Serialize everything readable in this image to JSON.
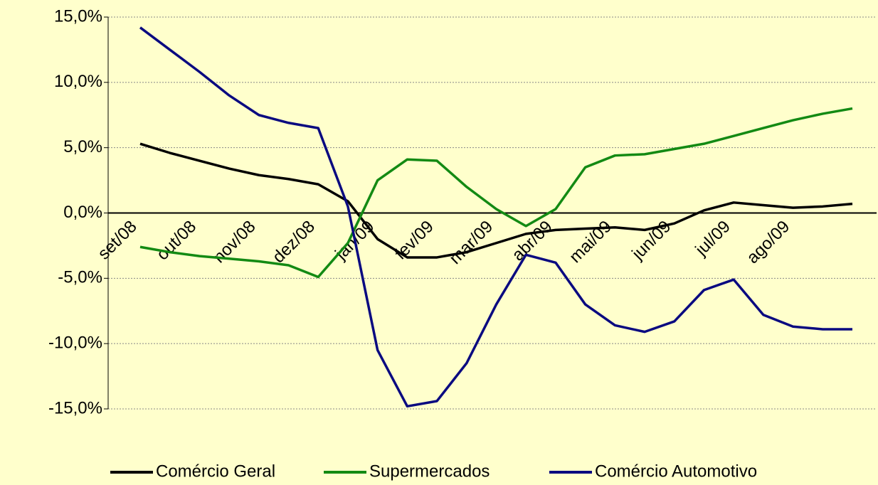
{
  "chart_data": {
    "type": "line",
    "categories": [
      "set/08",
      null,
      "out/08",
      null,
      "nov/08",
      null,
      "dez/08",
      null,
      "jan/09",
      null,
      "fev/09",
      null,
      "mar/09",
      null,
      "abr/09",
      null,
      "mai/09",
      null,
      "jun/09",
      null,
      "jul/09",
      null,
      "ago/09",
      null,
      null
    ],
    "series": [
      {
        "name": "Comércio Geral",
        "color": "#000000",
        "values": [
          5.3,
          4.6,
          4.0,
          3.4,
          2.9,
          2.6,
          2.2,
          0.9,
          -2.0,
          -3.4,
          -3.4,
          -3.0,
          -2.3,
          -1.6,
          -1.3,
          -1.2,
          -1.1,
          -1.3,
          -0.8,
          0.2,
          0.8,
          0.6,
          0.4,
          0.5,
          0.7
        ]
      },
      {
        "name": "Supermercados",
        "color": "#138a13",
        "values": [
          -2.6,
          -3.0,
          -3.3,
          -3.5,
          -3.7,
          -4.0,
          -4.9,
          -2.3,
          2.5,
          4.1,
          4.0,
          2.0,
          0.3,
          -1.0,
          0.3,
          3.5,
          4.4,
          4.5,
          4.9,
          5.3,
          5.9,
          6.5,
          7.1,
          7.6,
          8.0
        ]
      },
      {
        "name": "Comércio Automotivo",
        "color": "#0a0a80",
        "values": [
          14.2,
          12.5,
          10.8,
          9.0,
          7.5,
          6.9,
          6.5,
          0.5,
          -10.5,
          -14.8,
          -14.4,
          -11.5,
          -7.0,
          -3.2,
          -3.8,
          -7.0,
          -8.6,
          -9.1,
          -8.3,
          -5.9,
          -5.1,
          -7.8,
          -8.7,
          -8.9,
          -8.9
        ]
      }
    ],
    "ylim": [
      -15,
      15
    ],
    "yticks": [
      {
        "value": -15,
        "label": "-15,0%"
      },
      {
        "value": -10,
        "label": "-10,0%"
      },
      {
        "value": -5,
        "label": "-5,0%"
      },
      {
        "value": 0,
        "label": "0,0%"
      },
      {
        "value": 5,
        "label": "5,0%"
      },
      {
        "value": 10,
        "label": "10,0%"
      },
      {
        "value": 15,
        "label": "15,0%"
      }
    ],
    "grid": true
  }
}
